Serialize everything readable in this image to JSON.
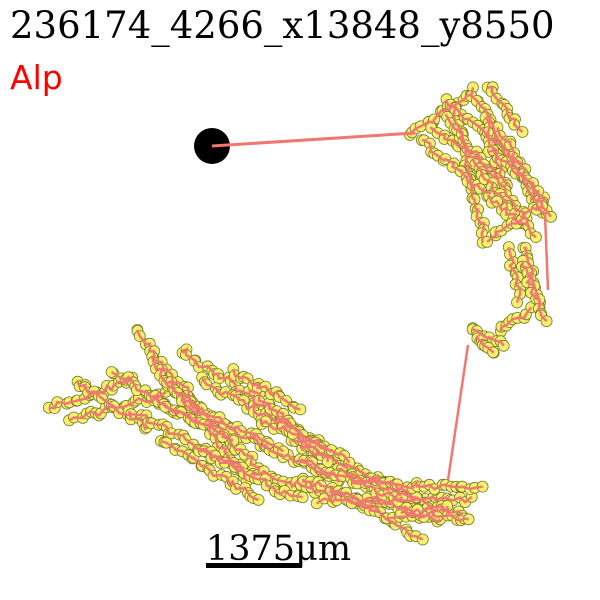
{
  "header": {
    "title": "236174_4266_x13848_y8550",
    "subtitle": "Alp"
  },
  "scalebar": {
    "label": "1375μm"
  },
  "colors": {
    "title": "#000000",
    "subtitle": "#ff0000",
    "track_line": "#f07870",
    "point_fill": "#f5f06e",
    "point_stroke": "#7a7a2a",
    "start_marker": "#000000",
    "scalebar": "#000000"
  }
}
